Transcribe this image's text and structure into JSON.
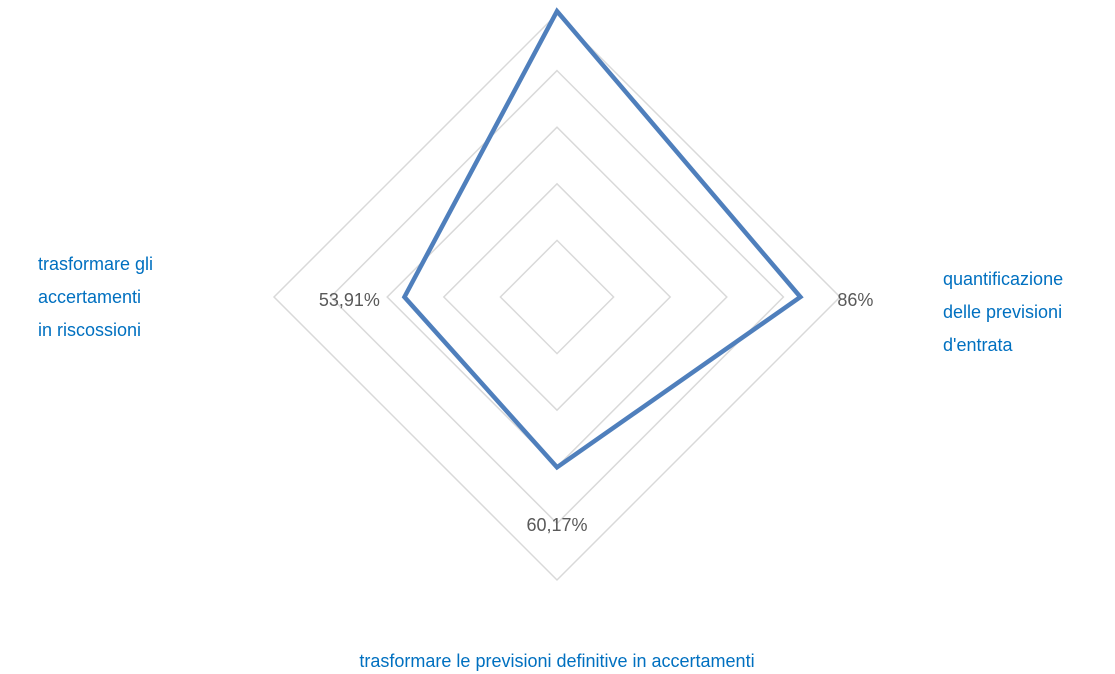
{
  "chart_data": {
    "type": "radar",
    "categories": [
      null,
      "quantificazione\ndelle previsioni\nd'entrata",
      "trasformare le previsioni definitive in accertamenti",
      "trasformare gli\naccertamenti\nin riscossioni"
    ],
    "series": [
      {
        "color": "#4f7fbc",
        "values": [
          101,
          86,
          60.17,
          53.91
        ],
        "value_labels": [
          null,
          "86%",
          "60,17%",
          "53,91%"
        ]
      }
    ],
    "rlim": [
      0,
      100
    ],
    "rticks": [
      0,
      20,
      40,
      60,
      80,
      100
    ],
    "grid": true
  }
}
